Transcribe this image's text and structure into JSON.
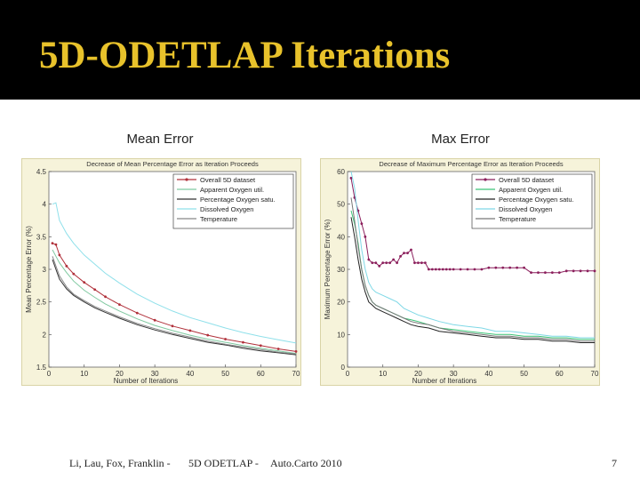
{
  "slide": {
    "title": "5D-ODETLAP Iterations",
    "left_caption": "Mean Error",
    "right_caption": "Max Error",
    "footer_authors": "Li, Lau, Fox, Franklin -",
    "footer_project": "5D ODETLAP -",
    "footer_venue": "Auto.Carto 2010",
    "page_number": "7",
    "title_color": "#e8c22b"
  },
  "chart_data": [
    {
      "type": "line",
      "title": "Decrease of Mean Percentage Error as Iteration Proceeds",
      "xlabel": "Number of Iterations",
      "ylabel": "Mean Percentage Error (%)",
      "xlim": [
        0,
        70
      ],
      "ylim": [
        1.5,
        4.5
      ],
      "xticks": [
        "0",
        "10",
        "20",
        "30",
        "40",
        "50",
        "60",
        "70"
      ],
      "yticks": [
        "1.5",
        "2",
        "2.5",
        "3",
        "3.5",
        "4",
        "4.5"
      ],
      "legend_position": "top-right",
      "series": [
        {
          "name": "Overall 5D dataset",
          "color": "#b0303a",
          "marker": true,
          "x": [
            1,
            2,
            3,
            5,
            7,
            10,
            13,
            16,
            20,
            25,
            30,
            35,
            40,
            45,
            50,
            55,
            60,
            65,
            70
          ],
          "y": [
            3.4,
            3.38,
            3.22,
            3.05,
            2.93,
            2.8,
            2.69,
            2.58,
            2.46,
            2.33,
            2.22,
            2.13,
            2.06,
            1.99,
            1.93,
            1.88,
            1.83,
            1.78,
            1.74
          ]
        },
        {
          "name": "Apparent Oxygen util.",
          "color": "#7fc9a0",
          "marker": false,
          "x": [
            1,
            2,
            3,
            5,
            7,
            10,
            13,
            16,
            20,
            25,
            30,
            35,
            40,
            45,
            50,
            55,
            60,
            65,
            70
          ],
          "y": [
            3.3,
            3.2,
            3.1,
            2.95,
            2.82,
            2.68,
            2.57,
            2.47,
            2.36,
            2.24,
            2.14,
            2.06,
            1.99,
            1.93,
            1.88,
            1.83,
            1.79,
            1.75,
            1.71
          ]
        },
        {
          "name": "Percentage Oxygen satu.",
          "color": "#333333",
          "marker": false,
          "x": [
            1,
            2,
            3,
            5,
            7,
            10,
            13,
            16,
            20,
            25,
            30,
            35,
            40,
            45,
            50,
            55,
            60,
            65,
            70
          ],
          "y": [
            3.15,
            3.0,
            2.85,
            2.7,
            2.6,
            2.5,
            2.41,
            2.34,
            2.25,
            2.15,
            2.07,
            2.0,
            1.94,
            1.88,
            1.84,
            1.79,
            1.75,
            1.72,
            1.69
          ]
        },
        {
          "name": "Dissolved Oxygen",
          "color": "#8fe0ea",
          "marker": false,
          "x": [
            1,
            2,
            3,
            5,
            7,
            10,
            13,
            16,
            20,
            25,
            30,
            35,
            40,
            45,
            50,
            55,
            60,
            65,
            70
          ],
          "y": [
            4.0,
            4.02,
            3.75,
            3.55,
            3.4,
            3.22,
            3.08,
            2.94,
            2.79,
            2.62,
            2.48,
            2.36,
            2.26,
            2.18,
            2.1,
            2.03,
            1.97,
            1.92,
            1.87
          ]
        },
        {
          "name": "Temperature",
          "color": "#888888",
          "marker": false,
          "x": [
            1,
            2,
            3,
            5,
            7,
            10,
            13,
            16,
            20,
            25,
            30,
            35,
            40,
            45,
            50,
            55,
            60,
            65,
            70
          ],
          "y": [
            3.2,
            3.05,
            2.9,
            2.73,
            2.62,
            2.52,
            2.43,
            2.36,
            2.27,
            2.17,
            2.09,
            2.02,
            1.96,
            1.9,
            1.85,
            1.81,
            1.77,
            1.73,
            1.7
          ]
        }
      ]
    },
    {
      "type": "line",
      "title": "Decrease of Maximum Percentage Error as Iteration Proceeds",
      "xlabel": "Number of Iterations",
      "ylabel": "Maximum Percentage Error (%)",
      "xlim": [
        0,
        70
      ],
      "ylim": [
        0,
        60
      ],
      "xticks": [
        "0",
        "10",
        "20",
        "30",
        "40",
        "50",
        "60",
        "70"
      ],
      "yticks": [
        "0",
        "10",
        "20",
        "30",
        "40",
        "50",
        "60"
      ],
      "legend_position": "top-right",
      "series": [
        {
          "name": "Overall 5D dataset",
          "color": "#8b1f5c",
          "marker": true,
          "x": [
            1,
            2,
            3,
            4,
            5,
            6,
            7,
            8,
            9,
            10,
            11,
            12,
            13,
            14,
            15,
            16,
            17,
            18,
            19,
            20,
            21,
            22,
            23,
            24,
            25,
            26,
            27,
            28,
            29,
            30,
            32,
            34,
            36,
            38,
            40,
            42,
            44,
            46,
            48,
            50,
            52,
            54,
            56,
            58,
            60,
            62,
            64,
            66,
            68,
            70
          ],
          "y": [
            58,
            52,
            48,
            44,
            40,
            33,
            32,
            32,
            31,
            32,
            32,
            32,
            33,
            32,
            34,
            35,
            35,
            36,
            32,
            32,
            32,
            32,
            30,
            30,
            30,
            30,
            30,
            30,
            30,
            30,
            30,
            30,
            30,
            30,
            30.5,
            30.5,
            30.5,
            30.5,
            30.5,
            30.5,
            29,
            29,
            29,
            29,
            29,
            29.5,
            29.5,
            29.5,
            29.5,
            29.5
          ]
        },
        {
          "name": "Apparent Oxygen util.",
          "color": "#3cc477",
          "marker": false,
          "x": [
            1,
            2,
            3,
            4,
            5,
            6,
            7,
            8,
            10,
            12,
            14,
            16,
            18,
            20,
            23,
            26,
            30,
            34,
            38,
            42,
            46,
            50,
            54,
            58,
            62,
            66,
            70
          ],
          "y": [
            48,
            44,
            38,
            30,
            25,
            22,
            20,
            19,
            18,
            17,
            16,
            15,
            14.5,
            14,
            13,
            12,
            11.5,
            11,
            10.5,
            10,
            10,
            9.5,
            9.5,
            9,
            9,
            8.5,
            8.5
          ]
        },
        {
          "name": "Percentage Oxygen satu.",
          "color": "#222222",
          "marker": false,
          "x": [
            1,
            2,
            3,
            4,
            5,
            6,
            7,
            8,
            10,
            12,
            14,
            16,
            18,
            20,
            23,
            26,
            30,
            34,
            38,
            42,
            46,
            50,
            54,
            58,
            62,
            66,
            70
          ],
          "y": [
            46,
            40,
            33,
            27,
            23,
            20,
            19,
            18,
            17,
            16,
            15,
            14,
            13,
            12.5,
            12,
            11,
            10.5,
            10,
            9.5,
            9,
            9,
            8.5,
            8.5,
            8,
            8,
            7.5,
            7.5
          ]
        },
        {
          "name": "Dissolved Oxygen",
          "color": "#7fd8e6",
          "marker": false,
          "x": [
            1,
            2,
            3,
            4,
            5,
            6,
            7,
            8,
            10,
            12,
            14,
            16,
            18,
            20,
            23,
            26,
            30,
            34,
            38,
            42,
            46,
            50,
            54,
            58,
            62,
            66,
            70
          ],
          "y": [
            60,
            55,
            45,
            36,
            30,
            26,
            24,
            23,
            22,
            21,
            20,
            18,
            17,
            16,
            15,
            14,
            13,
            12.5,
            12,
            11,
            11,
            10.5,
            10,
            9.5,
            9.5,
            9,
            9
          ]
        },
        {
          "name": "Temperature",
          "color": "#777777",
          "marker": false,
          "x": [
            1,
            2,
            3,
            4,
            5,
            6,
            7,
            8,
            10,
            12,
            14,
            16,
            18,
            20,
            23,
            26,
            30,
            34,
            38,
            42,
            46,
            50,
            54,
            58,
            62,
            66,
            70
          ],
          "y": [
            52,
            45,
            37,
            30,
            25,
            22,
            20,
            19,
            18,
            17,
            16,
            15,
            14,
            13.5,
            13,
            12,
            11,
            10.5,
            10,
            9.5,
            9.5,
            9,
            9,
            8.5,
            8.5,
            8,
            8
          ]
        }
      ]
    }
  ]
}
